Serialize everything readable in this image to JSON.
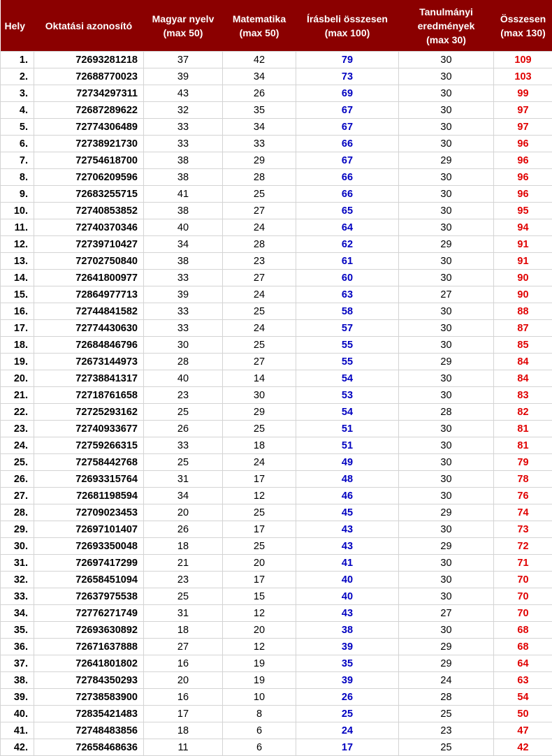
{
  "colors": {
    "header_bg": "#8b0000",
    "written_total": "#0000c0",
    "grand_total": "#e00000"
  },
  "headers": [
    "Hely",
    "Oktatási azonosító",
    "Magyar nyelv\n(max 50)",
    "Matematika\n(max 50)",
    "Írásbeli összesen\n(max 100)",
    "Tanulmányi\neredmények\n(max 30)",
    "Összesen\n(max 130)"
  ],
  "rows": [
    [
      "1.",
      "72693281218",
      37,
      42,
      79,
      30,
      109
    ],
    [
      "2.",
      "72688770023",
      39,
      34,
      73,
      30,
      103
    ],
    [
      "3.",
      "72734297311",
      43,
      26,
      69,
      30,
      99
    ],
    [
      "4.",
      "72687289622",
      32,
      35,
      67,
      30,
      97
    ],
    [
      "5.",
      "72774306489",
      33,
      34,
      67,
      30,
      97
    ],
    [
      "6.",
      "72738921730",
      33,
      33,
      66,
      30,
      96
    ],
    [
      "7.",
      "72754618700",
      38,
      29,
      67,
      29,
      96
    ],
    [
      "8.",
      "72706209596",
      38,
      28,
      66,
      30,
      96
    ],
    [
      "9.",
      "72683255715",
      41,
      25,
      66,
      30,
      96
    ],
    [
      "10.",
      "72740853852",
      38,
      27,
      65,
      30,
      95
    ],
    [
      "11.",
      "72740370346",
      40,
      24,
      64,
      30,
      94
    ],
    [
      "12.",
      "72739710427",
      34,
      28,
      62,
      29,
      91
    ],
    [
      "13.",
      "72702750840",
      38,
      23,
      61,
      30,
      91
    ],
    [
      "14.",
      "72641800977",
      33,
      27,
      60,
      30,
      90
    ],
    [
      "15.",
      "72864977713",
      39,
      24,
      63,
      27,
      90
    ],
    [
      "16.",
      "72744841582",
      33,
      25,
      58,
      30,
      88
    ],
    [
      "17.",
      "72774430630",
      33,
      24,
      57,
      30,
      87
    ],
    [
      "18.",
      "72684846796",
      30,
      25,
      55,
      30,
      85
    ],
    [
      "19.",
      "72673144973",
      28,
      27,
      55,
      29,
      84
    ],
    [
      "20.",
      "72738841317",
      40,
      14,
      54,
      30,
      84
    ],
    [
      "21.",
      "72718761658",
      23,
      30,
      53,
      30,
      83
    ],
    [
      "22.",
      "72725293162",
      25,
      29,
      54,
      28,
      82
    ],
    [
      "23.",
      "72740933677",
      26,
      25,
      51,
      30,
      81
    ],
    [
      "24.",
      "72759266315",
      33,
      18,
      51,
      30,
      81
    ],
    [
      "25.",
      "72758442768",
      25,
      24,
      49,
      30,
      79
    ],
    [
      "26.",
      "72693315764",
      31,
      17,
      48,
      30,
      78
    ],
    [
      "27.",
      "72681198594",
      34,
      12,
      46,
      30,
      76
    ],
    [
      "28.",
      "72709023453",
      20,
      25,
      45,
      29,
      74
    ],
    [
      "29.",
      "72697101407",
      26,
      17,
      43,
      30,
      73
    ],
    [
      "30.",
      "72693350048",
      18,
      25,
      43,
      29,
      72
    ],
    [
      "31.",
      "72697417299",
      21,
      20,
      41,
      30,
      71
    ],
    [
      "32.",
      "72658451094",
      23,
      17,
      40,
      30,
      70
    ],
    [
      "33.",
      "72637975538",
      25,
      15,
      40,
      30,
      70
    ],
    [
      "34.",
      "72776271749",
      31,
      12,
      43,
      27,
      70
    ],
    [
      "35.",
      "72693630892",
      18,
      20,
      38,
      30,
      68
    ],
    [
      "36.",
      "72671637888",
      27,
      12,
      39,
      29,
      68
    ],
    [
      "37.",
      "72641801802",
      16,
      19,
      35,
      29,
      64
    ],
    [
      "38.",
      "72784350293",
      20,
      19,
      39,
      24,
      63
    ],
    [
      "39.",
      "72738583900",
      16,
      10,
      26,
      28,
      54
    ],
    [
      "40.",
      "72835421483",
      17,
      8,
      25,
      25,
      50
    ],
    [
      "41.",
      "72748483856",
      18,
      6,
      24,
      23,
      47
    ],
    [
      "42.",
      "72658468636",
      11,
      6,
      17,
      25,
      42
    ]
  ]
}
